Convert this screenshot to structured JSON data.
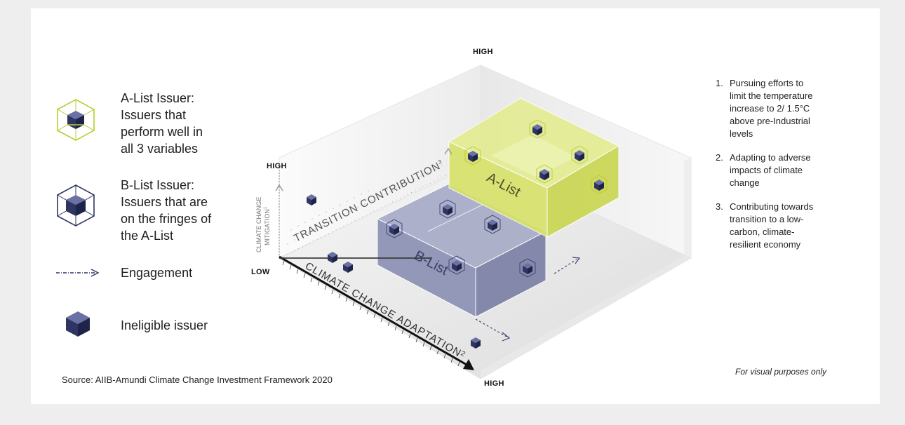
{
  "legend": {
    "a_list": "A-List Issuer: Issuers that perform well in all 3 variables",
    "a_list_lines": [
      "A-List Issuer:",
      "Issuers that",
      "perform well in",
      "all 3 variables"
    ],
    "b_list_lines": [
      "B-List Issuer:",
      "Issuers that are",
      "on the fringes of",
      "the A-List"
    ],
    "engagement": "Engagement",
    "ineligible": "Ineligible issuer"
  },
  "axes": {
    "high_top": "HIGH",
    "high_left": "HIGH",
    "low": "LOW",
    "high_bottom": "HIGH",
    "transition_contribution": "TRANSITION CONTRIBUTION",
    "transition_sup": "3",
    "mitigation_line1": "CLIMATE CHANGE",
    "mitigation_line2": "MITIGATION",
    "mitigation_sup": "1",
    "adaptation": "CLIMATE CHANGE ADAPTATION",
    "adaptation_sup": "2"
  },
  "boxes": {
    "a_list_label": "A-List",
    "b_list_label": "B-List"
  },
  "notes": [
    {
      "num": "1.",
      "lines": [
        "Pursuing efforts to",
        "limit the temperature",
        "increase to 2/ 1.5°C",
        "above pre-Industrial",
        "levels"
      ]
    },
    {
      "num": "2.",
      "lines": [
        "Adapting to adverse",
        "impacts of climate",
        "change"
      ]
    },
    {
      "num": "3.",
      "lines": [
        "Contributing towards",
        "transition to a low-",
        "carbon, climate-",
        "resilient economy"
      ]
    }
  ],
  "source": "Source: AIIB-Amundi Climate Change Investment Framework 2020",
  "disclaimer": "For visual purposes only",
  "colors": {
    "a_list_fill": "#dfe97a",
    "a_list_stroke": "#b9cc2e",
    "b_list_fill": "#8a8fb3",
    "cube_dark": "#2f3563",
    "cube_top": "#6a71a3",
    "background": "#eeeeef"
  },
  "icons": [
    "a-list-cube-icon",
    "b-list-cube-icon",
    "engagement-arrow-icon",
    "ineligible-cube-icon"
  ]
}
